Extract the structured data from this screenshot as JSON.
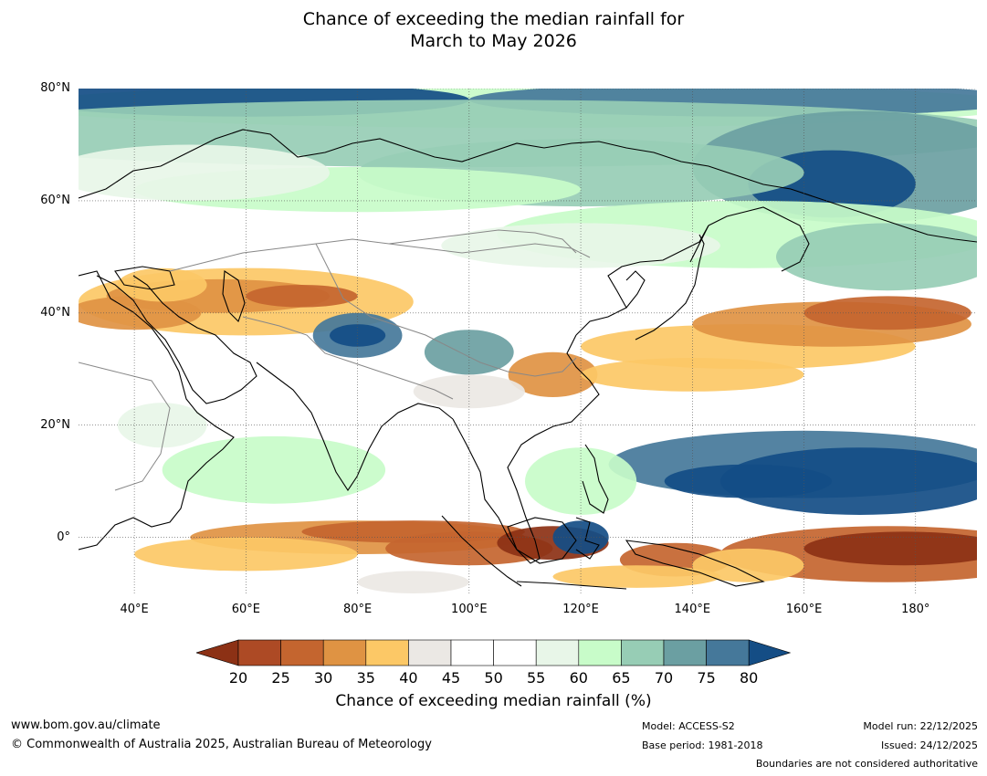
{
  "title": {
    "line1": "Chance of exceeding the median rainfall for",
    "line2": "March to May 2026"
  },
  "map": {
    "lat_ticks": [
      "80°N",
      "60°N",
      "40°N",
      "20°N",
      "0°"
    ],
    "lon_ticks": [
      "40°E",
      "60°E",
      "80°E",
      "100°E",
      "120°E",
      "140°E",
      "160°E",
      "180°"
    ],
    "lat_range": [
      -10,
      80
    ],
    "lon_range": [
      30,
      191
    ],
    "colors": {
      "c20": "#8c3115",
      "c25": "#ad4a25",
      "c30": "#c4652f",
      "c35": "#df9343",
      "c40": "#fcc866",
      "c45": "#ebe8e4",
      "c50": "#ffffff",
      "c55": "#ffffff",
      "c60": "#e8f6e8",
      "c65": "#c8fcc9",
      "c70": "#97cdb5",
      "c75": "#6b9fa2",
      "c80": "#45789a",
      "cmax": "#144d85"
    }
  },
  "colorbar": {
    "labels": [
      "20",
      "25",
      "30",
      "35",
      "40",
      "45",
      "50",
      "55",
      "60",
      "65",
      "70",
      "75",
      "80"
    ],
    "title": "Chance of exceeding median rainfall (%)"
  },
  "footer": {
    "website": "www.bom.gov.au/climate",
    "copyright": "© Commonwealth of Australia 2025, Australian Bureau of Meteorology",
    "model": "Model: ACCESS-S2",
    "base_period": "Base period: 1981-2018",
    "model_run": "Model run: 22/12/2025",
    "issued": "Issued: 24/12/2025",
    "disclaimer": "Boundaries are not considered authoritative"
  }
}
